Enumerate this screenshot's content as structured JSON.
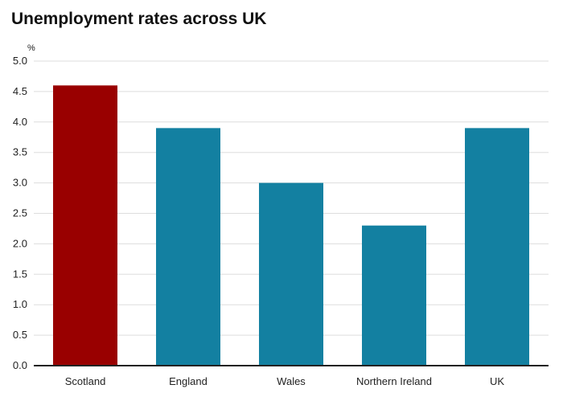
{
  "chart_data": {
    "type": "bar",
    "title": "Unemployment rates across UK",
    "ylabel": "%",
    "xlabel": "",
    "categories": [
      "Scotland",
      "England",
      "Wales",
      "Northern Ireland",
      "UK"
    ],
    "values": [
      4.6,
      3.9,
      3.0,
      2.3,
      3.9
    ],
    "ylim": [
      0,
      5
    ],
    "yticks": [
      "0.0",
      "0.5",
      "1.0",
      "1.5",
      "2.0",
      "2.5",
      "3.0",
      "3.5",
      "4.0",
      "4.5",
      "5.0"
    ],
    "grid": true,
    "colors": {
      "highlight": "#990000",
      "default": "#1380a1",
      "grid": "#dddddd",
      "axis": "#222222"
    },
    "highlight_category": "Scotland"
  }
}
